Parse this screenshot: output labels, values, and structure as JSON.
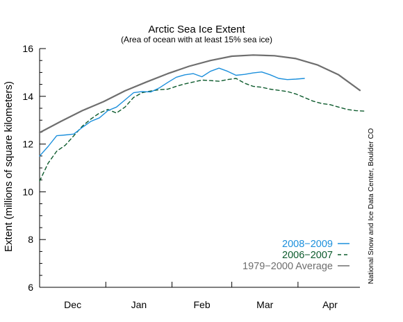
{
  "chart_data": {
    "type": "line",
    "title": "Arctic Sea Ice Extent",
    "subtitle": "(Area of ocean with at least 15% sea ice)",
    "xlabel": "",
    "ylabel": "Extent (millions of square kilometers)",
    "ylim": [
      6,
      16
    ],
    "y_ticks": [
      "6",
      "8",
      "10",
      "12",
      "14",
      "16"
    ],
    "x_ticks": [
      "Dec",
      "Jan",
      "Feb",
      "Mar",
      "Apr"
    ],
    "credit": "National Snow and Ice Data Center, Boulder CO",
    "legend_position": "bottom-right",
    "grid": false,
    "series": [
      {
        "name": "1979−2000 Average",
        "color": "#6e6e6e",
        "style": "solid",
        "x_days": [
          0,
          10,
          20,
          30,
          40,
          50,
          60,
          70,
          80,
          90,
          100,
          110,
          120,
          130,
          140,
          150
        ],
        "values": [
          12.48,
          12.95,
          13.4,
          13.78,
          14.23,
          14.6,
          14.95,
          15.26,
          15.5,
          15.68,
          15.73,
          15.7,
          15.58,
          15.32,
          14.9,
          14.25
        ]
      },
      {
        "name": "2008−2009",
        "color": "#1b8fdc",
        "style": "solid",
        "x_days": [
          0,
          4,
          8,
          12,
          16,
          20,
          24,
          28,
          32,
          36,
          40,
          44,
          48,
          52,
          56,
          60,
          64,
          68,
          72,
          76,
          80,
          84,
          88,
          92,
          96,
          100,
          104,
          108,
          112,
          116,
          120,
          124
        ],
        "values": [
          11.5,
          11.9,
          12.35,
          12.38,
          12.42,
          12.7,
          12.95,
          13.1,
          13.4,
          13.55,
          13.85,
          14.15,
          14.2,
          14.18,
          14.35,
          14.58,
          14.8,
          14.9,
          14.95,
          14.82,
          15.05,
          15.18,
          15.05,
          14.88,
          14.92,
          14.98,
          15.02,
          14.9,
          14.75,
          14.7,
          14.72,
          14.75
        ]
      },
      {
        "name": "2006−2007",
        "color": "#0c5a2c",
        "style": "dashed",
        "x_days": [
          0,
          4,
          8,
          12,
          16,
          20,
          24,
          28,
          32,
          36,
          40,
          44,
          48,
          52,
          56,
          60,
          64,
          68,
          72,
          76,
          80,
          84,
          88,
          92,
          96,
          100,
          104,
          108,
          112,
          116,
          120,
          124,
          128,
          132,
          136,
          140,
          144,
          148,
          152
        ],
        "values": [
          10.45,
          11.2,
          11.7,
          11.95,
          12.35,
          12.75,
          13.05,
          13.3,
          13.45,
          13.3,
          13.55,
          13.95,
          14.15,
          14.22,
          14.28,
          14.3,
          14.42,
          14.52,
          14.6,
          14.68,
          14.66,
          14.63,
          14.7,
          14.75,
          14.55,
          14.42,
          14.38,
          14.3,
          14.25,
          14.2,
          14.1,
          13.95,
          13.8,
          13.7,
          13.65,
          13.55,
          13.45,
          13.4,
          13.38
        ]
      }
    ]
  },
  "colors": {
    "axis": "#000000",
    "average": "#6e6e6e",
    "recent": "#1b8fdc",
    "prior": "#0c5a2c"
  }
}
